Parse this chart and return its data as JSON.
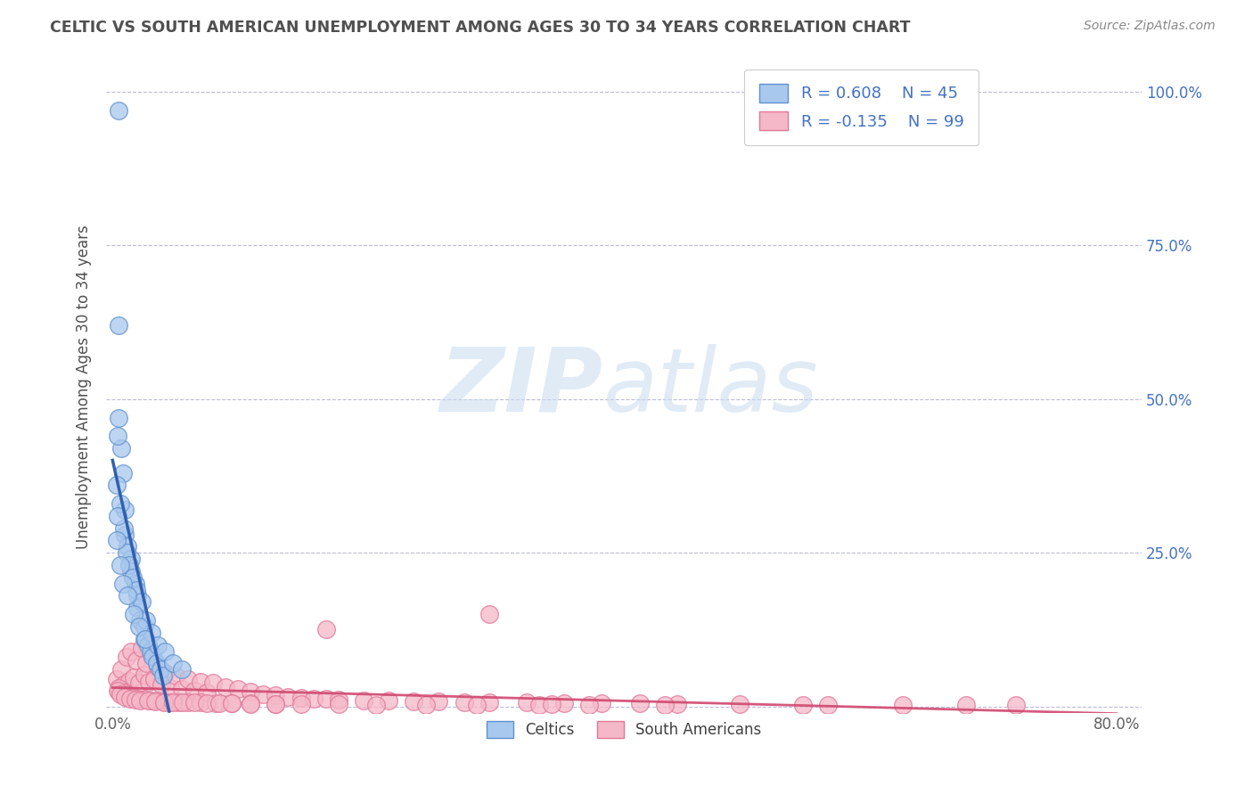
{
  "title": "CELTIC VS SOUTH AMERICAN UNEMPLOYMENT AMONG AGES 30 TO 34 YEARS CORRELATION CHART",
  "source": "Source: ZipAtlas.com",
  "ylabel": "Unemployment Among Ages 30 to 34 years",
  "xlim": [
    -0.005,
    0.82
  ],
  "ylim": [
    -0.01,
    1.05
  ],
  "celtic_R": 0.608,
  "celtic_N": 45,
  "sa_R": -0.135,
  "sa_N": 99,
  "celtic_color": "#A8C8EE",
  "sa_color": "#F5B8C8",
  "celtic_edge_color": "#6090CC",
  "sa_edge_color": "#E07898",
  "celtic_trend_color": "#3060B0",
  "sa_trend_color": "#D04870",
  "legend_text_color": "#4472C4",
  "watermark_zip": "ZIP",
  "watermark_atlas": "atlas",
  "title_color": "#505050",
  "background_color": "#FFFFFF",
  "grid_color": "#AAAACC",
  "celtic_x": [
    0.005,
    0.005,
    0.005,
    0.007,
    0.008,
    0.01,
    0.01,
    0.012,
    0.015,
    0.015,
    0.018,
    0.02,
    0.02,
    0.022,
    0.025,
    0.025,
    0.028,
    0.03,
    0.032,
    0.035,
    0.038,
    0.04,
    0.004,
    0.003,
    0.006,
    0.009,
    0.011,
    0.013,
    0.016,
    0.019,
    0.023,
    0.027,
    0.031,
    0.036,
    0.042,
    0.048,
    0.055,
    0.003,
    0.004,
    0.006,
    0.008,
    0.012,
    0.017,
    0.021,
    0.026
  ],
  "celtic_y": [
    0.97,
    0.62,
    0.47,
    0.42,
    0.38,
    0.32,
    0.28,
    0.26,
    0.24,
    0.22,
    0.2,
    0.18,
    0.16,
    0.14,
    0.13,
    0.11,
    0.1,
    0.09,
    0.08,
    0.07,
    0.06,
    0.05,
    0.44,
    0.36,
    0.33,
    0.29,
    0.25,
    0.23,
    0.21,
    0.19,
    0.17,
    0.14,
    0.12,
    0.1,
    0.09,
    0.07,
    0.06,
    0.27,
    0.31,
    0.23,
    0.2,
    0.18,
    0.15,
    0.13,
    0.11
  ],
  "sa_x": [
    0.003,
    0.005,
    0.007,
    0.009,
    0.011,
    0.013,
    0.015,
    0.017,
    0.019,
    0.021,
    0.023,
    0.025,
    0.027,
    0.029,
    0.031,
    0.033,
    0.036,
    0.039,
    0.042,
    0.046,
    0.05,
    0.055,
    0.06,
    0.065,
    0.07,
    0.075,
    0.08,
    0.09,
    0.1,
    0.11,
    0.12,
    0.13,
    0.14,
    0.15,
    0.16,
    0.17,
    0.18,
    0.2,
    0.22,
    0.24,
    0.26,
    0.28,
    0.3,
    0.33,
    0.36,
    0.39,
    0.42,
    0.45,
    0.5,
    0.55,
    0.005,
    0.008,
    0.012,
    0.016,
    0.02,
    0.025,
    0.03,
    0.035,
    0.04,
    0.045,
    0.052,
    0.06,
    0.07,
    0.082,
    0.095,
    0.11,
    0.13,
    0.15,
    0.18,
    0.21,
    0.25,
    0.29,
    0.34,
    0.004,
    0.006,
    0.01,
    0.014,
    0.018,
    0.022,
    0.028,
    0.034,
    0.041,
    0.048,
    0.056,
    0.065,
    0.075,
    0.085,
    0.095,
    0.11,
    0.13,
    0.3,
    0.35,
    0.57,
    0.63,
    0.17,
    0.38,
    0.44,
    0.68,
    0.72
  ],
  "sa_y": [
    0.045,
    0.025,
    0.06,
    0.035,
    0.08,
    0.042,
    0.09,
    0.048,
    0.075,
    0.038,
    0.095,
    0.052,
    0.07,
    0.04,
    0.085,
    0.045,
    0.065,
    0.035,
    0.055,
    0.03,
    0.05,
    0.028,
    0.045,
    0.025,
    0.04,
    0.022,
    0.038,
    0.032,
    0.028,
    0.024,
    0.02,
    0.018,
    0.016,
    0.014,
    0.013,
    0.012,
    0.011,
    0.01,
    0.009,
    0.008,
    0.008,
    0.007,
    0.006,
    0.006,
    0.005,
    0.005,
    0.005,
    0.004,
    0.004,
    0.003,
    0.03,
    0.022,
    0.018,
    0.015,
    0.013,
    0.011,
    0.01,
    0.009,
    0.008,
    0.007,
    0.007,
    0.006,
    0.006,
    0.005,
    0.005,
    0.005,
    0.004,
    0.004,
    0.004,
    0.003,
    0.003,
    0.003,
    0.003,
    0.025,
    0.02,
    0.016,
    0.013,
    0.011,
    0.01,
    0.009,
    0.008,
    0.007,
    0.007,
    0.006,
    0.006,
    0.005,
    0.005,
    0.005,
    0.004,
    0.004,
    0.15,
    0.004,
    0.003,
    0.003,
    0.125,
    0.003,
    0.003,
    0.003,
    0.003
  ]
}
